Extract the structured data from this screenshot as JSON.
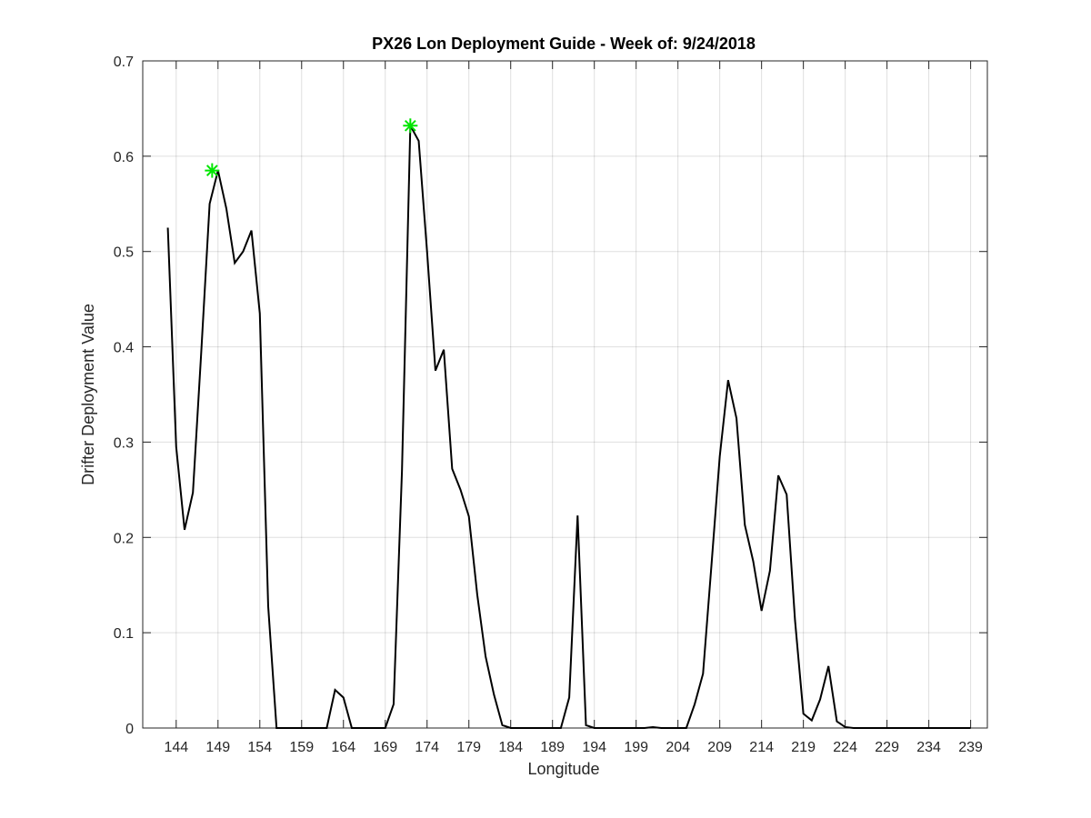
{
  "chart_data": {
    "type": "line",
    "title": "PX26 Lon Deployment Guide - Week of: 9/24/2018",
    "xlabel": "Longitude",
    "ylabel": "Drifter Deployment Value",
    "xlim": [
      140,
      241
    ],
    "ylim": [
      0,
      0.7
    ],
    "xticks": [
      144,
      149,
      154,
      159,
      164,
      169,
      174,
      179,
      184,
      189,
      194,
      199,
      204,
      209,
      214,
      219,
      224,
      229,
      234,
      239
    ],
    "yticks": [
      0,
      0.1,
      0.2,
      0.3,
      0.4,
      0.5,
      0.6,
      0.7
    ],
    "ytick_labels": [
      "0",
      "0.1",
      "0.2",
      "0.3",
      "0.4",
      "0.5",
      "0.6",
      "0.7"
    ],
    "grid": true,
    "line_color": "#000000",
    "marker_color": "#00e600",
    "series": [
      {
        "x": [
          143,
          144,
          145,
          146,
          147,
          148,
          149,
          150,
          151,
          152,
          153,
          154,
          155,
          156,
          157,
          158,
          159,
          160,
          161,
          162,
          163,
          164,
          165,
          166,
          167,
          168,
          169,
          170,
          171,
          172,
          173,
          174,
          175,
          176,
          177,
          178,
          179,
          180,
          181,
          182,
          183,
          184,
          185,
          186,
          187,
          188,
          189,
          190,
          191,
          192,
          193,
          194,
          195,
          196,
          197,
          198,
          199,
          200,
          201,
          202,
          203,
          204,
          205,
          206,
          207,
          208,
          209,
          210,
          211,
          212,
          213,
          214,
          215,
          216,
          217,
          218,
          219,
          220,
          221,
          222,
          223,
          224,
          225,
          226,
          227,
          228,
          229,
          230,
          231,
          232,
          233,
          234,
          235,
          236,
          237,
          238,
          239
        ],
        "y": [
          0.525,
          0.295,
          0.208,
          0.247,
          0.395,
          0.55,
          0.585,
          0.545,
          0.488,
          0.5,
          0.522,
          0.435,
          0.128,
          0.0,
          0.0,
          0.0,
          0.0,
          0.0,
          0.0,
          0.0,
          0.04,
          0.032,
          0.0,
          0.0,
          0.0,
          0.0,
          0.0,
          0.025,
          0.27,
          0.632,
          0.616,
          0.5,
          0.375,
          0.397,
          0.272,
          0.25,
          0.222,
          0.14,
          0.075,
          0.035,
          0.003,
          0.0,
          0.0,
          0.0,
          0.0,
          0.0,
          0.0,
          0.0,
          0.032,
          0.223,
          0.003,
          0.0,
          0.0,
          0.0,
          0.0,
          0.0,
          0.0,
          0.0,
          0.001,
          0.0,
          0.0,
          0.0,
          0.0,
          0.025,
          0.057,
          0.17,
          0.285,
          0.365,
          0.325,
          0.213,
          0.175,
          0.123,
          0.165,
          0.265,
          0.245,
          0.113,
          0.015,
          0.008,
          0.03,
          0.065,
          0.007,
          0.001,
          0.0,
          0.0,
          0.0,
          0.0,
          0.0,
          0.0,
          0.0,
          0.0,
          0.0,
          0.0,
          0.0,
          0.0,
          0.0,
          0.0,
          0.0
        ]
      }
    ],
    "markers": [
      {
        "x": 148.3,
        "y": 0.585
      },
      {
        "x": 172,
        "y": 0.632
      }
    ]
  }
}
